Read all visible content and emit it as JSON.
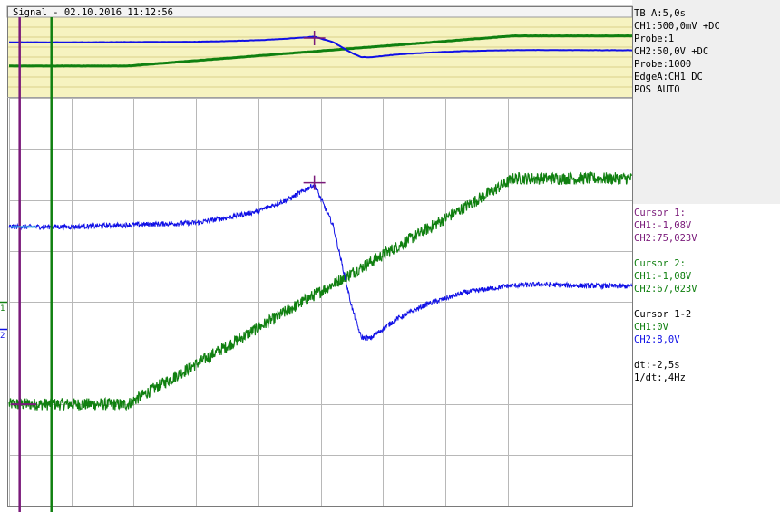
{
  "title": "Signal - 02.10.2016 11:12:56",
  "colors": {
    "ch1": "#1010e6",
    "ch2": "#108010",
    "cursor1": "#7a1a7a",
    "cursor2": "#108010",
    "grid": "#b8b8b8",
    "overview_bg": "#f6f3c0",
    "panel_bg": "#efefef"
  },
  "channel_markers": {
    "ch1": "1",
    "ch2": "2"
  },
  "settings": {
    "timebase": "TB A:5,0s",
    "ch1": "CH1:500,0mV +DC",
    "ch1_probe": "Probe:1",
    "ch2": "CH2:50,0V +DC",
    "ch2_probe": "Probe:1000",
    "trigger": "EdgeA:CH1 DC",
    "mode": "POS AUTO"
  },
  "cursor1": {
    "title": "Cursor 1:",
    "ch1": "CH1:-1,08V",
    "ch2": "CH2:75,023V"
  },
  "cursor2": {
    "title": "Cursor 2:",
    "ch1": "CH1:-1,08V",
    "ch2": "CH2:67,023V"
  },
  "delta": {
    "title": "Cursor 1-2",
    "ch1": "CH1:0V",
    "ch2": "CH2:8,0V"
  },
  "timing": {
    "dt": "dt:-2,5s",
    "freq": "1/dt:,4Hz"
  },
  "chart_data": {
    "type": "line",
    "grid": true,
    "divisions": {
      "x": 10,
      "y": 8
    },
    "x_units": "div",
    "y_units": "div",
    "xlim": [
      0,
      10
    ],
    "ylim": [
      -4,
      4
    ],
    "series": [
      {
        "name": "CH1",
        "noise": 0.05,
        "points": [
          [
            0,
            1.47
          ],
          [
            1,
            1.47
          ],
          [
            2,
            1.51
          ],
          [
            3,
            1.55
          ],
          [
            3.5,
            1.65
          ],
          [
            4,
            1.78
          ],
          [
            4.5,
            2.02
          ],
          [
            4.9,
            2.3
          ],
          [
            5.2,
            1.5
          ],
          [
            5.5,
            -0.1
          ],
          [
            5.65,
            -0.7
          ],
          [
            5.8,
            -0.72
          ],
          [
            6.2,
            -0.35
          ],
          [
            6.7,
            -0.05
          ],
          [
            7.3,
            0.18
          ],
          [
            8,
            0.31
          ],
          [
            8.5,
            0.34
          ],
          [
            9,
            0.32
          ],
          [
            10,
            0.3
          ]
        ]
      },
      {
        "name": "CH2",
        "noise": 0.12,
        "points": [
          [
            0,
            -2.01
          ],
          [
            1.9,
            -2.01
          ],
          [
            8.1,
            2.42
          ],
          [
            10,
            2.42
          ]
        ]
      }
    ],
    "cursors": {
      "cursor1_x": 0.17,
      "cursor2_x": 0.68,
      "trigger_x": 4.9
    }
  }
}
